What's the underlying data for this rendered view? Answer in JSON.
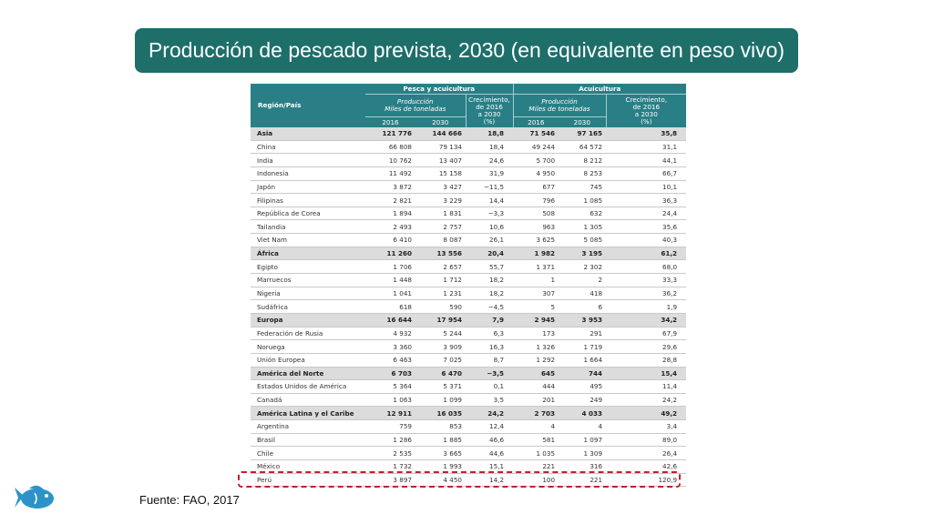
{
  "title": "Producción de pescado prevista, 2030 (en equivalente en peso vivo)",
  "source": "Fuente: FAO, 2017",
  "colors": {
    "title_bg": "#1e6e6a",
    "header_bg": "#2a7f86",
    "highlight": "#c0202a",
    "fish": "#2c93c9"
  },
  "table": {
    "region_header": "Región/País",
    "group1": "Pesca y acuicultura",
    "group2": "Acuicultura",
    "production_header_1": "Producción",
    "production_header_2": "Miles de toneladas",
    "growth_header_1": "Crecimiento,",
    "growth_header_2": "de 2016",
    "growth_header_3": "a 2030",
    "growth_header_4": "(%)",
    "aq_growth_header_1": "Crecimiento,",
    "aq_growth_header_2": "de 2016",
    "aq_growth_header_3": "a 2030",
    "aq_growth_header_4": "(%)",
    "year1": "2016",
    "year2": "2030",
    "year3": "2016",
    "year4": "2030",
    "rows": [
      {
        "name": "Asia",
        "v": [
          "121 776",
          "144 666",
          "18,8",
          "71 546",
          "97 165",
          "35,8"
        ],
        "agg": true
      },
      {
        "name": "China",
        "v": [
          "66 808",
          "79 134",
          "18,4",
          "49 244",
          "64 572",
          "31,1"
        ]
      },
      {
        "name": "India",
        "v": [
          "10 762",
          "13 407",
          "24,6",
          "5 700",
          "8 212",
          "44,1"
        ]
      },
      {
        "name": "Indonesia",
        "v": [
          "11 492",
          "15 158",
          "31,9",
          "4 950",
          "8 253",
          "66,7"
        ]
      },
      {
        "name": "Japón",
        "v": [
          "3 872",
          "3 427",
          "−11,5",
          "677",
          "745",
          "10,1"
        ]
      },
      {
        "name": "Filipinas",
        "v": [
          "2 821",
          "3 229",
          "14,4",
          "796",
          "1 085",
          "36,3"
        ]
      },
      {
        "name": "República de Corea",
        "v": [
          "1 894",
          "1 831",
          "−3,3",
          "508",
          "632",
          "24,4"
        ]
      },
      {
        "name": "Tailandia",
        "v": [
          "2 493",
          "2 757",
          "10,6",
          "963",
          "1 305",
          "35,6"
        ]
      },
      {
        "name": "Viet Nam",
        "v": [
          "6 410",
          "8 087",
          "26,1",
          "3 625",
          "5 085",
          "40,3"
        ]
      },
      {
        "name": "África",
        "v": [
          "11 260",
          "13 556",
          "20,4",
          "1 982",
          "3 195",
          "61,2"
        ],
        "agg": true
      },
      {
        "name": "Egipto",
        "v": [
          "1 706",
          "2 657",
          "55,7",
          "1 371",
          "2 302",
          "68,0"
        ]
      },
      {
        "name": "Marruecos",
        "v": [
          "1 448",
          "1 712",
          "18,2",
          "1",
          "2",
          "33,3"
        ]
      },
      {
        "name": "Nigeria",
        "v": [
          "1 041",
          "1 231",
          "18,2",
          "307",
          "418",
          "36,2"
        ]
      },
      {
        "name": "Sudáfrica",
        "v": [
          "618",
          "590",
          "−4,5",
          "5",
          "6",
          "1,9"
        ]
      },
      {
        "name": "Europa",
        "v": [
          "16 644",
          "17 954",
          "7,9",
          "2 945",
          "3 953",
          "34,2"
        ],
        "agg": true
      },
      {
        "name": "Federación de Rusia",
        "v": [
          "4 932",
          "5 244",
          "6,3",
          "173",
          "291",
          "67,9"
        ]
      },
      {
        "name": "Noruega",
        "v": [
          "3 360",
          "3 909",
          "16,3",
          "1 326",
          "1 719",
          "29,6"
        ]
      },
      {
        "name": "Unión Europea",
        "v": [
          "6 463",
          "7 025",
          "8,7",
          "1 292",
          "1 664",
          "28,8"
        ]
      },
      {
        "name": "América del Norte",
        "v": [
          "6 703",
          "6 470",
          "−3,5",
          "645",
          "744",
          "15,4"
        ],
        "agg": true
      },
      {
        "name": "Estados Unidos de América",
        "v": [
          "5 364",
          "5 371",
          "0,1",
          "444",
          "495",
          "11,4"
        ]
      },
      {
        "name": "Canadá",
        "v": [
          "1 063",
          "1 099",
          "3,5",
          "201",
          "249",
          "24,2"
        ]
      },
      {
        "name": "América Latina y el Caribe",
        "v": [
          "12 911",
          "16 035",
          "24,2",
          "2 703",
          "4 033",
          "49,2"
        ],
        "agg": true
      },
      {
        "name": "Argentina",
        "v": [
          "759",
          "853",
          "12,4",
          "4",
          "4",
          "3,4"
        ]
      },
      {
        "name": "Brasil",
        "v": [
          "1 286",
          "1 885",
          "46,6",
          "581",
          "1 097",
          "89,0"
        ]
      },
      {
        "name": "Chile",
        "v": [
          "2 535",
          "3 665",
          "44,6",
          "1 035",
          "1 309",
          "26,4"
        ]
      },
      {
        "name": "México",
        "v": [
          "1 732",
          "1 993",
          "15,1",
          "221",
          "316",
          "42,6"
        ]
      },
      {
        "name": "Perú",
        "v": [
          "3 897",
          "4 450",
          "14,2",
          "100",
          "221",
          "120,9"
        ]
      }
    ]
  }
}
